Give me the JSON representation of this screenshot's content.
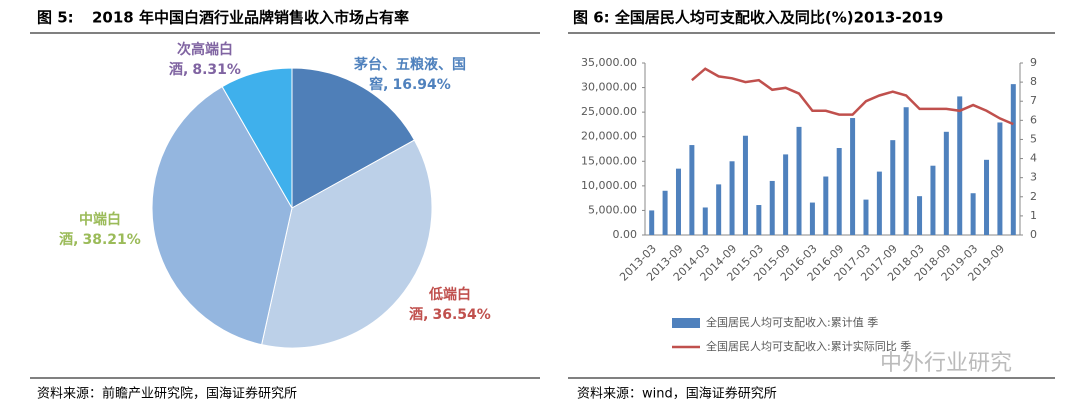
{
  "chart_data": [
    {
      "type": "pie",
      "figure_label": "图 5:",
      "title": "2018 年中国白酒行业品牌销售收入市场占有率",
      "categories": [
        "茅台、五粮液、国窖,",
        "低端白酒,",
        "中端白酒,",
        "次高端白酒,"
      ],
      "values": [
        16.94,
        36.54,
        38.21,
        8.31
      ],
      "value_labels": [
        "16.94%",
        "36.54%",
        "38.21%",
        "8.31%"
      ],
      "colors": [
        "#4f7fb8",
        "#bcd0e8",
        "#94b6df",
        "#3fb0ec"
      ],
      "label_colors": [
        "#4f81bd",
        "#c0504d",
        "#9bbb59",
        "#8064a2"
      ],
      "source": "资料来源：前瞻产业研究院，国海证券研究所"
    },
    {
      "type": "bar-line",
      "title": "图 6: 全国居民人均可支配收入及同比(%)2013-2019",
      "categories": [
        "2013-03",
        null,
        "2013-09",
        null,
        "2014-03",
        null,
        "2014-09",
        null,
        "2015-03",
        null,
        "2015-09",
        null,
        "2016-03",
        null,
        "2016-09",
        null,
        "2017-03",
        null,
        "2017-09",
        null,
        "2018-03",
        null,
        "2018-09",
        null,
        "2019-03",
        null,
        "2019-09",
        null
      ],
      "series": [
        {
          "name": "全国居民人均可支配收入:累计值 季",
          "color": "#4f81bd",
          "type": "bar",
          "values": [
            5000,
            9000,
            13500,
            18300,
            5600,
            10300,
            15000,
            20200,
            6100,
            11000,
            16400,
            22000,
            6600,
            11900,
            17700,
            23800,
            7200,
            12900,
            19300,
            26000,
            7900,
            14100,
            21000,
            28200,
            8500,
            15300,
            22900,
            30700
          ]
        },
        {
          "name": "全国居民人均可支配收入:累计实际同比 季",
          "color": "#c0504d",
          "type": "line",
          "axis": "y2",
          "values": [
            null,
            null,
            null,
            8.1,
            8.7,
            8.3,
            8.2,
            8.0,
            8.1,
            7.6,
            7.7,
            7.4,
            6.5,
            6.5,
            6.3,
            6.3,
            7.0,
            7.3,
            7.5,
            7.3,
            6.6,
            6.6,
            6.6,
            6.5,
            6.8,
            6.5,
            6.1,
            5.8
          ]
        }
      ],
      "ylim": [
        0,
        35000
      ],
      "yticks": [
        {
          "value": 0,
          "label": "0.00"
        },
        {
          "value": 5000,
          "label": "5,000.00"
        },
        {
          "value": 10000,
          "label": "10,000.00"
        },
        {
          "value": 15000,
          "label": "15,000.00"
        },
        {
          "value": 20000,
          "label": "20,000.00"
        },
        {
          "value": 25000,
          "label": "25,000.00"
        },
        {
          "value": 30000,
          "label": "30,000.00"
        },
        {
          "value": 35000,
          "label": "35,000.00"
        }
      ],
      "y2lim": [
        0,
        9
      ],
      "y2ticks": [
        0,
        1,
        2,
        3,
        4,
        5,
        6,
        7,
        8,
        9
      ],
      "source": "资料来源：wind，国海证券研究所"
    }
  ],
  "watermark": "中外行业研究"
}
